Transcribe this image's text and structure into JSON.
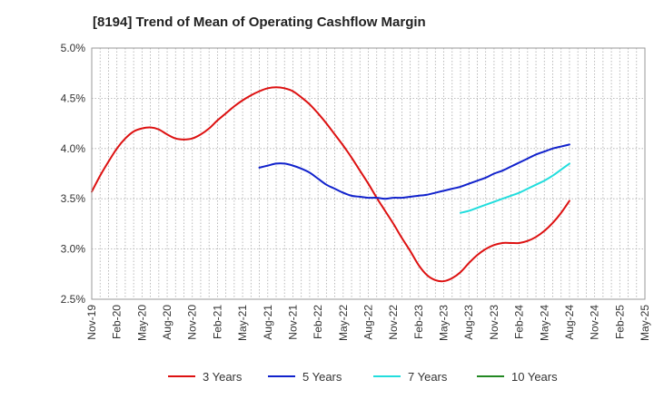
{
  "chart_data": {
    "type": "line",
    "title": "[8194]  Trend of Mean of Operating Cashflow Margin",
    "xlabel": "",
    "ylabel": "",
    "x_ticks": [
      "Nov-19",
      "Feb-20",
      "May-20",
      "Aug-20",
      "Nov-20",
      "Feb-21",
      "May-21",
      "Aug-21",
      "Nov-21",
      "Feb-22",
      "May-22",
      "Aug-22",
      "Nov-22",
      "Feb-23",
      "May-23",
      "Aug-23",
      "Nov-23",
      "Feb-24",
      "May-24",
      "Aug-24",
      "Nov-24",
      "Feb-25",
      "May-25"
    ],
    "y_ticks": [
      "2.5%",
      "3.0%",
      "3.5%",
      "4.0%",
      "4.5%",
      "5.0%"
    ],
    "ylim": [
      2.5,
      5.0
    ],
    "x_unit": "month",
    "grid": true,
    "legend_position": "bottom",
    "colors": {
      "3 Years": "#dd1111",
      "5 Years": "#1122cc",
      "7 Years": "#22dddd",
      "10 Years": "#228822"
    },
    "series": [
      {
        "name": "3 Years",
        "color": "#dd1111",
        "points": [
          [
            "2019-11",
            3.57
          ],
          [
            "2019-12",
            3.73
          ],
          [
            "2020-01",
            3.87
          ],
          [
            "2020-02",
            4.0
          ],
          [
            "2020-03",
            4.1
          ],
          [
            "2020-04",
            4.17
          ],
          [
            "2020-05",
            4.2
          ],
          [
            "2020-06",
            4.21
          ],
          [
            "2020-07",
            4.19
          ],
          [
            "2020-08",
            4.14
          ],
          [
            "2020-09",
            4.1
          ],
          [
            "2020-10",
            4.09
          ],
          [
            "2020-11",
            4.1
          ],
          [
            "2020-12",
            4.14
          ],
          [
            "2021-01",
            4.2
          ],
          [
            "2021-02",
            4.28
          ],
          [
            "2021-03",
            4.35
          ],
          [
            "2021-04",
            4.42
          ],
          [
            "2021-05",
            4.48
          ],
          [
            "2021-06",
            4.53
          ],
          [
            "2021-07",
            4.57
          ],
          [
            "2021-08",
            4.6
          ],
          [
            "2021-09",
            4.61
          ],
          [
            "2021-10",
            4.6
          ],
          [
            "2021-11",
            4.57
          ],
          [
            "2021-12",
            4.51
          ],
          [
            "2022-01",
            4.44
          ],
          [
            "2022-02",
            4.35
          ],
          [
            "2022-03",
            4.25
          ],
          [
            "2022-04",
            4.14
          ],
          [
            "2022-05",
            4.03
          ],
          [
            "2022-06",
            3.91
          ],
          [
            "2022-07",
            3.78
          ],
          [
            "2022-08",
            3.65
          ],
          [
            "2022-09",
            3.51
          ],
          [
            "2022-10",
            3.38
          ],
          [
            "2022-11",
            3.25
          ],
          [
            "2022-12",
            3.11
          ],
          [
            "2023-01",
            2.98
          ],
          [
            "2023-02",
            2.84
          ],
          [
            "2023-03",
            2.74
          ],
          [
            "2023-04",
            2.69
          ],
          [
            "2023-05",
            2.68
          ],
          [
            "2023-06",
            2.71
          ],
          [
            "2023-07",
            2.77
          ],
          [
            "2023-08",
            2.86
          ],
          [
            "2023-09",
            2.94
          ],
          [
            "2023-10",
            3.0
          ],
          [
            "2023-11",
            3.04
          ],
          [
            "2023-12",
            3.06
          ],
          [
            "2024-01",
            3.06
          ],
          [
            "2024-02",
            3.06
          ],
          [
            "2024-03",
            3.08
          ],
          [
            "2024-04",
            3.12
          ],
          [
            "2024-05",
            3.18
          ],
          [
            "2024-06",
            3.26
          ],
          [
            "2024-07",
            3.36
          ],
          [
            "2024-08",
            3.48
          ]
        ]
      },
      {
        "name": "5 Years",
        "color": "#1122cc",
        "points": [
          [
            "2021-07",
            3.81
          ],
          [
            "2021-08",
            3.83
          ],
          [
            "2021-09",
            3.85
          ],
          [
            "2021-10",
            3.85
          ],
          [
            "2021-11",
            3.83
          ],
          [
            "2021-12",
            3.8
          ],
          [
            "2022-01",
            3.76
          ],
          [
            "2022-02",
            3.7
          ],
          [
            "2022-03",
            3.64
          ],
          [
            "2022-04",
            3.6
          ],
          [
            "2022-05",
            3.56
          ],
          [
            "2022-06",
            3.53
          ],
          [
            "2022-07",
            3.52
          ],
          [
            "2022-08",
            3.51
          ],
          [
            "2022-09",
            3.51
          ],
          [
            "2022-10",
            3.5
          ],
          [
            "2022-11",
            3.51
          ],
          [
            "2022-12",
            3.51
          ],
          [
            "2023-01",
            3.52
          ],
          [
            "2023-02",
            3.53
          ],
          [
            "2023-03",
            3.54
          ],
          [
            "2023-04",
            3.56
          ],
          [
            "2023-05",
            3.58
          ],
          [
            "2023-06",
            3.6
          ],
          [
            "2023-07",
            3.62
          ],
          [
            "2023-08",
            3.65
          ],
          [
            "2023-09",
            3.68
          ],
          [
            "2023-10",
            3.71
          ],
          [
            "2023-11",
            3.75
          ],
          [
            "2023-12",
            3.78
          ],
          [
            "2024-01",
            3.82
          ],
          [
            "2024-02",
            3.86
          ],
          [
            "2024-03",
            3.9
          ],
          [
            "2024-04",
            3.94
          ],
          [
            "2024-05",
            3.97
          ],
          [
            "2024-06",
            4.0
          ],
          [
            "2024-07",
            4.02
          ],
          [
            "2024-08",
            4.04
          ]
        ]
      },
      {
        "name": "7 Years",
        "color": "#22dddd",
        "points": [
          [
            "2023-07",
            3.36
          ],
          [
            "2023-08",
            3.38
          ],
          [
            "2023-09",
            3.41
          ],
          [
            "2023-10",
            3.44
          ],
          [
            "2023-11",
            3.47
          ],
          [
            "2023-12",
            3.5
          ],
          [
            "2024-01",
            3.53
          ],
          [
            "2024-02",
            3.56
          ],
          [
            "2024-03",
            3.6
          ],
          [
            "2024-04",
            3.64
          ],
          [
            "2024-05",
            3.68
          ],
          [
            "2024-06",
            3.73
          ],
          [
            "2024-07",
            3.79
          ],
          [
            "2024-08",
            3.85
          ]
        ]
      },
      {
        "name": "10 Years",
        "color": "#228822",
        "points": []
      }
    ]
  }
}
